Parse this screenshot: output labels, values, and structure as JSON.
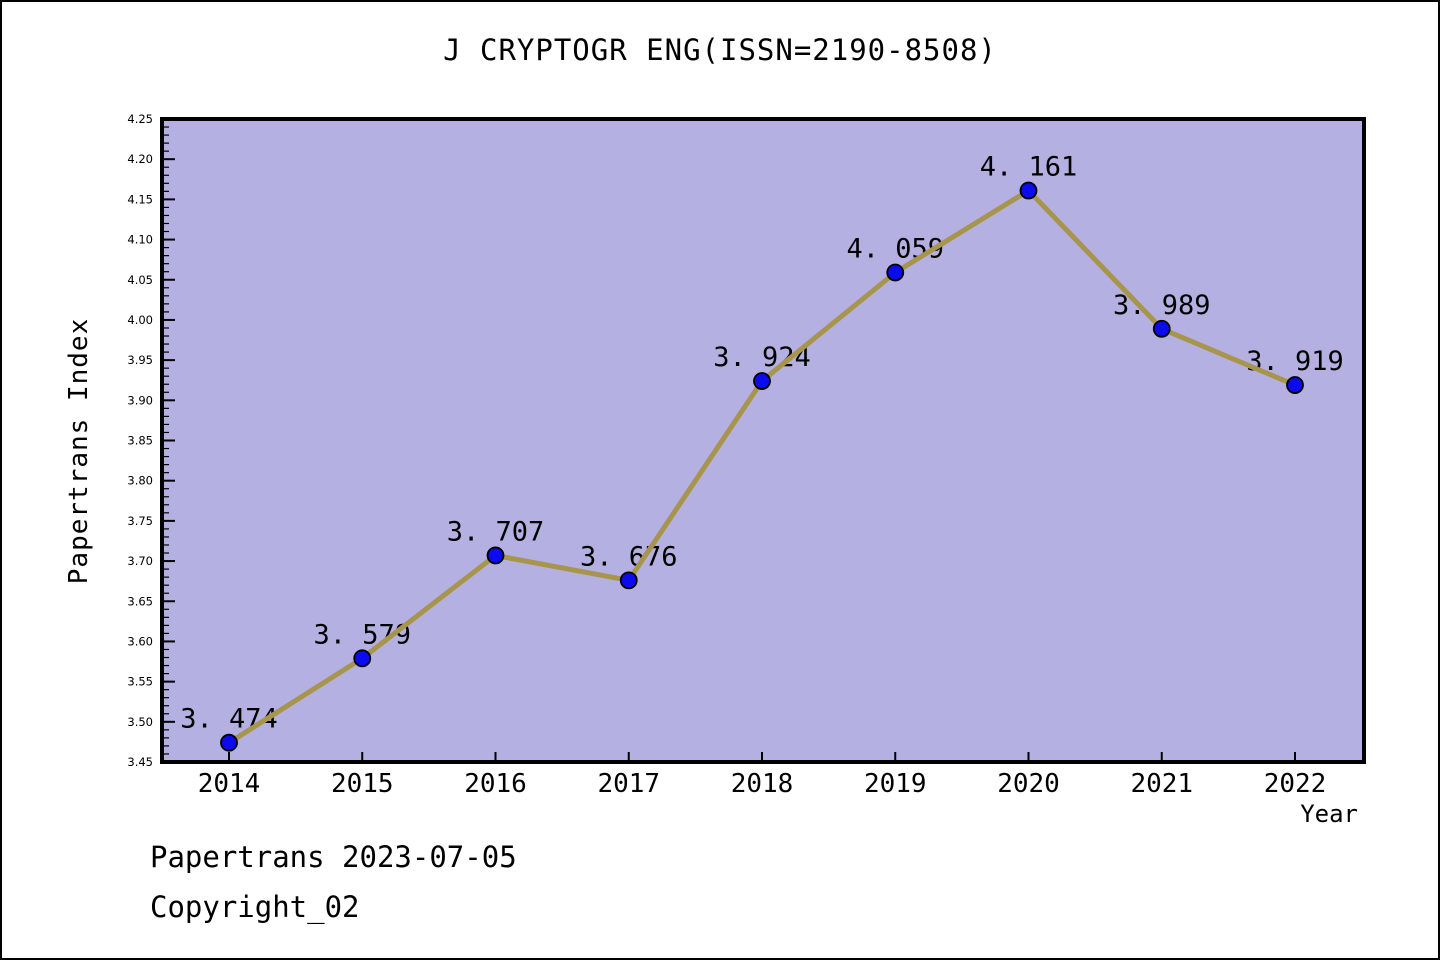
{
  "title": "J CRYPTOGR ENG(ISSN=2190-8508)",
  "footer": {
    "line1": "Papertrans 2023-07-05",
    "line2": "Copyright_02"
  },
  "colors": {
    "canvas_bg": "#ffffff",
    "plot_bg": "#b5b0e2",
    "line": "#a6954b",
    "marker_fill": "#0b0bee",
    "marker_edge": "#000000",
    "frame": "#000000",
    "text": "#000000"
  },
  "chart_data": {
    "type": "line",
    "title": "J CRYPTOGR ENG(ISSN=2190-8508)",
    "xlabel": "Year",
    "ylabel": "Papertrans Index",
    "x": [
      2014,
      2015,
      2016,
      2017,
      2018,
      2019,
      2020,
      2021,
      2022
    ],
    "values": [
      3.474,
      3.579,
      3.707,
      3.676,
      3.924,
      4.059,
      4.161,
      3.989,
      3.919
    ],
    "point_labels": [
      "3.474",
      "3.579",
      "3.707",
      "3.676",
      "3.924",
      "4.059",
      "4.161",
      "3.989",
      "3.919"
    ],
    "series_name": "Papertrans Index",
    "ylim": [
      3.45,
      4.25
    ],
    "ytick_step": 0.05,
    "ytick_minor_step": 0.01,
    "ytick_labels": [
      "3.45",
      "3.50",
      "3.55",
      "3.60",
      "3.65",
      "3.70",
      "3.75",
      "3.80",
      "3.85",
      "3.90",
      "3.95",
      "4.00",
      "4.05",
      "4.10",
      "4.15",
      "4.20",
      "4.25"
    ],
    "xtick_labels": [
      "2014",
      "2015",
      "2016",
      "2017",
      "2018",
      "2019",
      "2020",
      "2021",
      "2022"
    ],
    "grid": false,
    "legend": null
  }
}
